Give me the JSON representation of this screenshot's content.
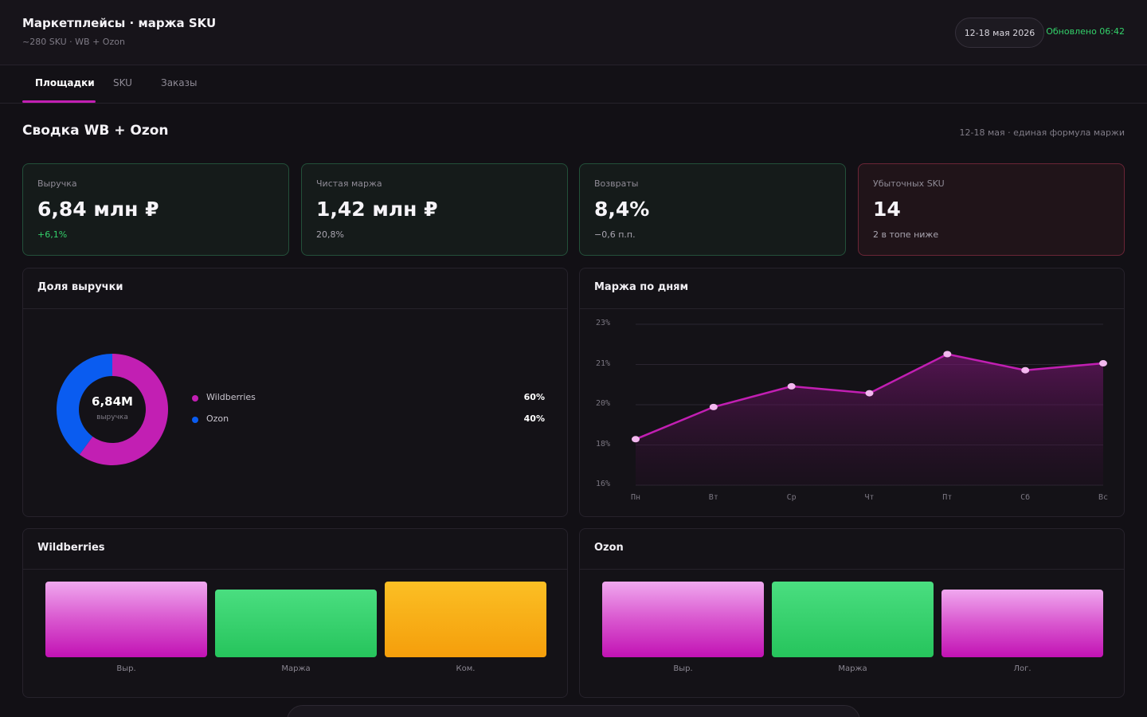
{
  "header": {
    "title": "Маркетплейсы · маржа SKU",
    "subtitle": "~280 SKU · WB + Ozon",
    "date_range": "12-18 мая 2026",
    "updated": "Обновлено 06:42"
  },
  "tabs": [
    "Площадки",
    "SKU",
    "Заказы"
  ],
  "summary": {
    "title": "Сводка WB + Ozon",
    "note": "12-18 мая · единая формула маржи"
  },
  "kpis": [
    {
      "label": "Выручка",
      "value": "6,84 млн ₽",
      "delta": "+6,1%"
    },
    {
      "label": "Чистая маржа",
      "value": "1,42 млн ₽",
      "delta": "20,8%"
    },
    {
      "label": "Возвраты",
      "value": "8,4%",
      "delta": "−0,6 п.п."
    },
    {
      "label": "Убыточных SKU",
      "value": "14",
      "delta": "2 в топе ниже"
    }
  ],
  "revenue_share": {
    "title": "Доля выручки",
    "center_value": "6,84M",
    "center_label": "выручка",
    "items": [
      {
        "name": "Wildberries",
        "pct_label": "60%",
        "share": 60,
        "color": "#c21fb3"
      },
      {
        "name": "Ozon",
        "pct_label": "40%",
        "share": 40,
        "color": "#0a5cf0"
      }
    ]
  },
  "chart_data": {
    "type": "area",
    "title": "Маржа по дням",
    "categories": [
      "Пн",
      "Вт",
      "Ср",
      "Чт",
      "Пт",
      "Сб",
      "Вс"
    ],
    "y_ticks": [
      "23%",
      "21%",
      "20%",
      "18%",
      "16%"
    ],
    "ylim": [
      16,
      23
    ],
    "series": [
      {
        "values": [
          18.0,
          19.4,
          20.3,
          20.0,
          21.7,
          21.0,
          21.3
        ]
      }
    ],
    "color": "#c21fb3"
  },
  "wb_card": {
    "title": "Wildberries",
    "bars": [
      {
        "label": "Выр.",
        "level": 1.0,
        "color": "pink"
      },
      {
        "label": "Маржа",
        "level": 0.9,
        "color": "green"
      },
      {
        "label": "Ком.",
        "level": 1.0,
        "color": "orange"
      }
    ]
  },
  "ozon_card": {
    "title": "Ozon",
    "bars": [
      {
        "label": "Выр.",
        "level": 1.0,
        "color": "pink"
      },
      {
        "label": "Маржа",
        "level": 1.0,
        "color": "green"
      },
      {
        "label": "Лог.",
        "level": 0.9,
        "color": "pink"
      }
    ]
  }
}
